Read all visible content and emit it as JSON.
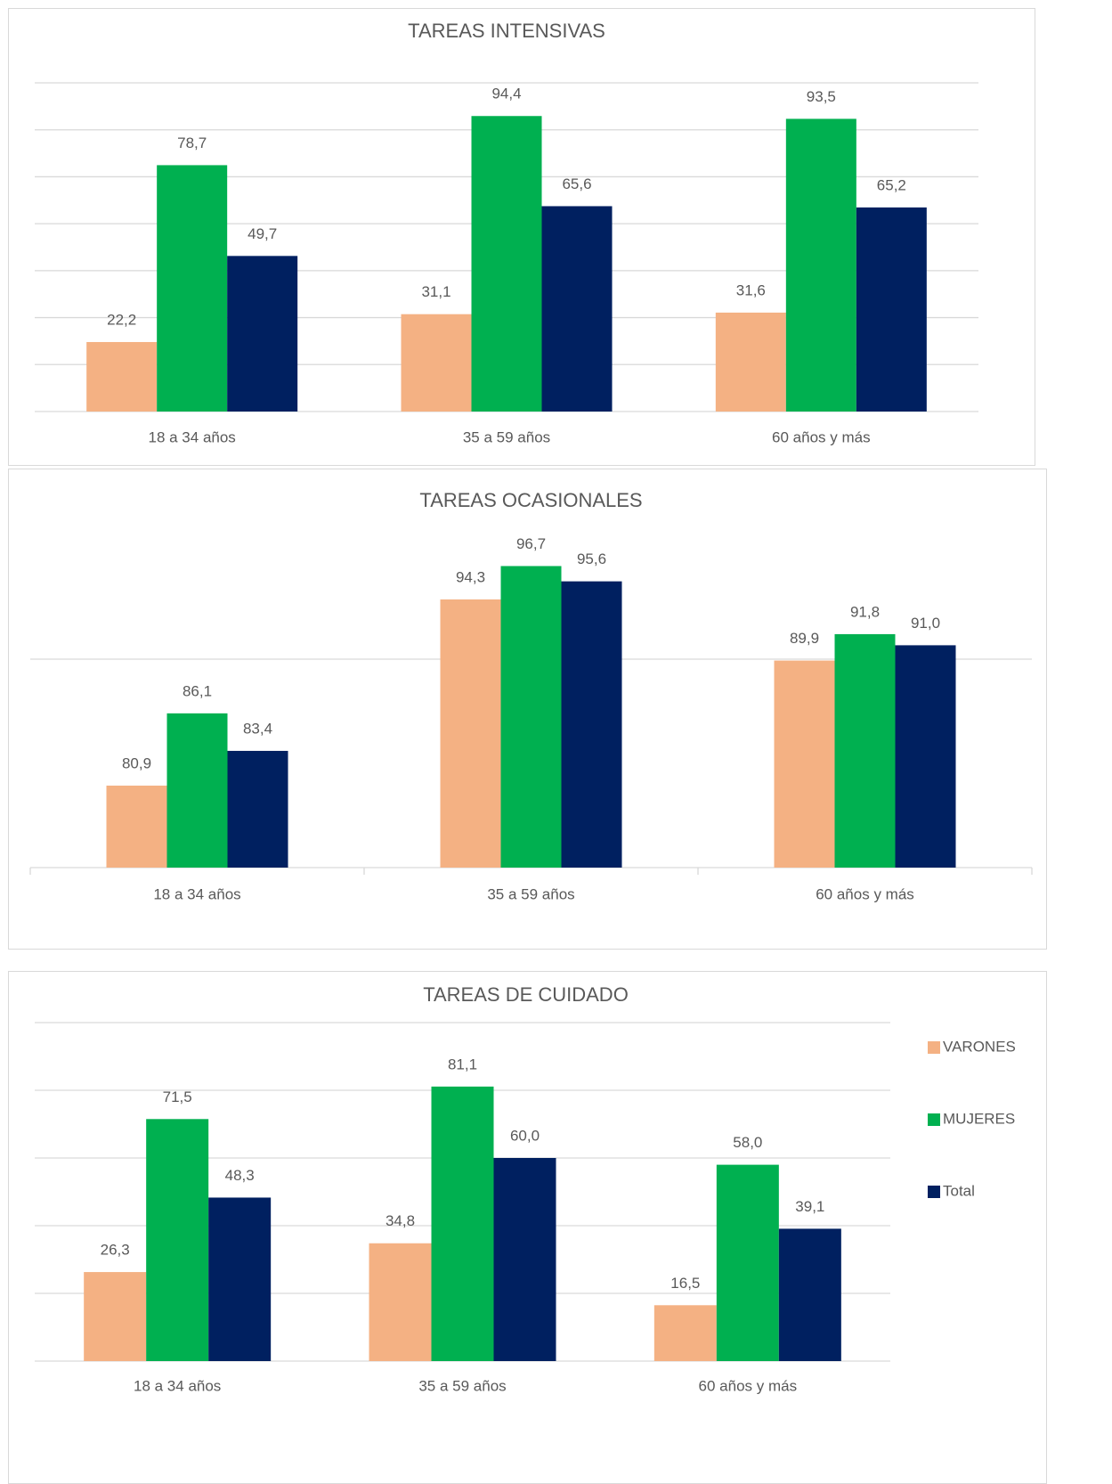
{
  "chart_data": [
    {
      "type": "bar",
      "title": "TAREAS INTENSIVAS",
      "categories": [
        "18 a 34 años",
        "35 a 59 años",
        "60 años y más"
      ],
      "series": [
        {
          "color": "#f4b183",
          "values": [
            22.2,
            31.1,
            31.6
          ],
          "value_labels": [
            "22,2",
            "31,1",
            "31,6"
          ]
        },
        {
          "color": "#00b050",
          "values": [
            78.7,
            94.4,
            93.5
          ],
          "value_labels": [
            "78,7",
            "94,4",
            "93,5"
          ]
        },
        {
          "color": "#002060",
          "values": [
            49.7,
            65.6,
            65.2
          ],
          "value_labels": [
            "49,7",
            "65,6",
            "65,2"
          ]
        }
      ],
      "ylim": [
        0,
        105
      ],
      "yticks": [
        0,
        15,
        30,
        45,
        60,
        75,
        90,
        105
      ],
      "grid": true
    },
    {
      "type": "bar",
      "title": "TAREAS OCASIONALES",
      "categories": [
        "18 a 34 años",
        "35 a 59 años",
        "60 años y más"
      ],
      "series": [
        {
          "color": "#f4b183",
          "values": [
            80.9,
            94.3,
            89.9
          ],
          "value_labels": [
            "80,9",
            "94,3",
            "89,9"
          ]
        },
        {
          "color": "#00b050",
          "values": [
            86.1,
            96.7,
            91.8
          ],
          "value_labels": [
            "86,1",
            "96,7",
            "91,8"
          ]
        },
        {
          "color": "#002060",
          "values": [
            83.4,
            95.6,
            91.0
          ],
          "value_labels": [
            "83,4",
            "95,6",
            "91,0"
          ]
        }
      ],
      "ylim": [
        75,
        100
      ],
      "yticks": [
        75,
        90
      ],
      "grid": true
    },
    {
      "type": "bar",
      "title": "TAREAS DE CUIDADO",
      "categories": [
        "18 a 34 años",
        "35 a 59 años",
        "60 años y más"
      ],
      "series": [
        {
          "name": "VARONES",
          "color": "#f4b183",
          "values": [
            26.3,
            34.8,
            16.5
          ],
          "value_labels": [
            "26,3",
            "34,8",
            "16,5"
          ]
        },
        {
          "name": "MUJERES",
          "color": "#00b050",
          "values": [
            71.5,
            81.1,
            58.0
          ],
          "value_labels": [
            "71,5",
            "81,1",
            "58,0"
          ]
        },
        {
          "name": "Total",
          "color": "#002060",
          "values": [
            48.3,
            60.0,
            39.1
          ],
          "value_labels": [
            "48,3",
            "60,0",
            "39,1"
          ]
        }
      ],
      "ylim": [
        0,
        100
      ],
      "yticks": [
        0,
        20,
        40,
        60,
        80,
        100
      ],
      "grid": true,
      "legend": "right"
    }
  ]
}
